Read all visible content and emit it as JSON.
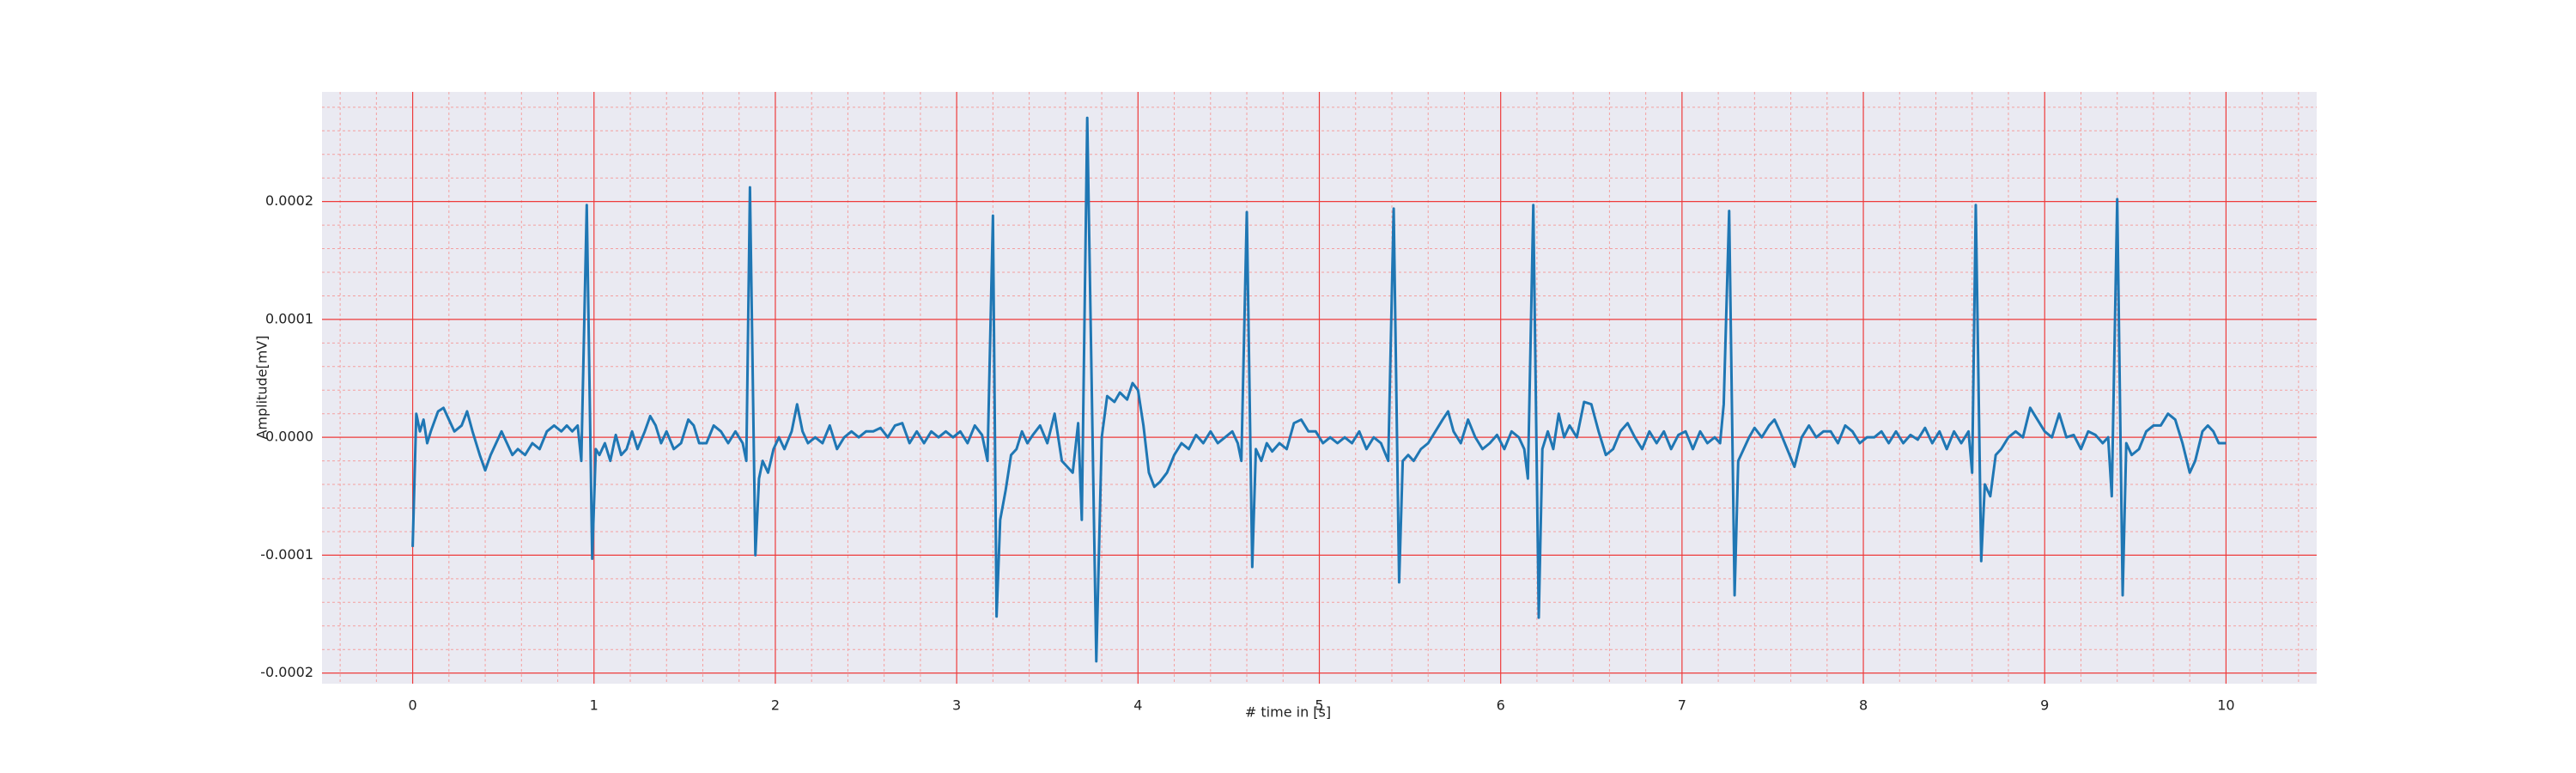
{
  "chart_data": {
    "type": "line",
    "xlabel": "# time in [s]",
    "ylabel": "Amplitude[mV]",
    "color": "#1f77b4",
    "grid": true,
    "minor_grid": true,
    "xlim": [
      -0.5,
      10.5
    ],
    "ylim": [
      -0.000209,
      0.000293
    ],
    "xticks": [
      0,
      1,
      2,
      3,
      4,
      5,
      6,
      7,
      8,
      9,
      10
    ],
    "yticks": [
      -0.0002,
      -0.0001,
      {
        "value": 0,
        "label": "0.0000"
      },
      0.0001,
      0.0002
    ],
    "xminorticks": [
      -0.4,
      -0.2,
      0.2,
      0.4,
      0.6,
      0.8,
      1.2,
      1.4,
      1.6,
      1.8,
      2.2,
      2.4,
      2.6,
      2.8,
      3.2,
      3.4,
      3.6,
      3.8,
      4.2,
      4.4,
      4.6,
      4.8,
      5.2,
      5.4,
      5.6,
      5.8,
      6.2,
      6.4,
      6.6,
      6.8,
      7.2,
      7.4,
      7.6,
      7.8,
      8.2,
      8.4,
      8.6,
      8.8,
      9.2,
      9.4,
      9.6,
      9.8,
      10.2,
      10.4
    ],
    "yminorticks": [
      -0.00018,
      -0.00016,
      -0.00014,
      -0.00012,
      -8e-05,
      -6e-05,
      -4e-05,
      -2e-05,
      2e-05,
      4e-05,
      6e-05,
      8e-05,
      0.00012,
      0.00014,
      0.00016,
      0.00018,
      0.00022,
      0.00024,
      0.00026,
      0.00028
    ],
    "x": [
      0.0,
      0.02,
      0.04,
      0.06,
      0.08,
      0.1,
      0.14,
      0.17,
      0.2,
      0.23,
      0.27,
      0.3,
      0.33,
      0.37,
      0.4,
      0.43,
      0.46,
      0.49,
      0.52,
      0.55,
      0.58,
      0.62,
      0.66,
      0.7,
      0.74,
      0.78,
      0.82,
      0.85,
      0.88,
      0.91,
      0.93,
      0.96,
      0.99,
      1.01,
      1.03,
      1.06,
      1.09,
      1.12,
      1.15,
      1.18,
      1.21,
      1.24,
      1.28,
      1.31,
      1.34,
      1.37,
      1.4,
      1.44,
      1.48,
      1.52,
      1.55,
      1.58,
      1.62,
      1.66,
      1.7,
      1.74,
      1.78,
      1.82,
      1.84,
      1.86,
      1.89,
      1.91,
      1.93,
      1.96,
      1.99,
      2.02,
      2.05,
      2.09,
      2.12,
      2.15,
      2.18,
      2.22,
      2.26,
      2.3,
      2.34,
      2.38,
      2.42,
      2.46,
      2.5,
      2.54,
      2.58,
      2.62,
      2.66,
      2.7,
      2.74,
      2.78,
      2.82,
      2.86,
      2.9,
      2.94,
      2.98,
      3.02,
      3.06,
      3.1,
      3.14,
      3.17,
      3.2,
      3.22,
      3.24,
      3.27,
      3.3,
      3.33,
      3.36,
      3.39,
      3.42,
      3.46,
      3.5,
      3.54,
      3.58,
      3.61,
      3.64,
      3.67,
      3.69,
      3.72,
      3.77,
      3.8,
      3.83,
      3.87,
      3.9,
      3.94,
      3.97,
      4.0,
      4.03,
      4.06,
      4.09,
      4.12,
      4.16,
      4.2,
      4.24,
      4.28,
      4.32,
      4.36,
      4.4,
      4.44,
      4.48,
      4.52,
      4.55,
      4.57,
      4.6,
      4.63,
      4.65,
      4.68,
      4.71,
      4.74,
      4.78,
      4.82,
      4.86,
      4.9,
      4.94,
      4.98,
      5.02,
      5.06,
      5.1,
      5.14,
      5.18,
      5.22,
      5.26,
      5.3,
      5.34,
      5.38,
      5.41,
      5.44,
      5.46,
      5.49,
      5.52,
      5.56,
      5.6,
      5.64,
      5.68,
      5.71,
      5.74,
      5.78,
      5.82,
      5.86,
      5.9,
      5.94,
      5.98,
      6.02,
      6.06,
      6.1,
      6.13,
      6.15,
      6.18,
      6.21,
      6.23,
      6.26,
      6.29,
      6.32,
      6.35,
      6.38,
      6.42,
      6.46,
      6.5,
      6.54,
      6.58,
      6.62,
      6.66,
      6.7,
      6.74,
      6.78,
      6.82,
      6.86,
      6.9,
      6.94,
      6.98,
      7.02,
      7.06,
      7.1,
      7.14,
      7.18,
      7.21,
      7.23,
      7.26,
      7.29,
      7.31,
      7.34,
      7.37,
      7.4,
      7.44,
      7.48,
      7.51,
      7.54,
      7.58,
      7.62,
      7.66,
      7.7,
      7.74,
      7.78,
      7.82,
      7.86,
      7.9,
      7.94,
      7.98,
      8.02,
      8.06,
      8.1,
      8.14,
      8.18,
      8.22,
      8.26,
      8.3,
      8.34,
      8.38,
      8.42,
      8.46,
      8.5,
      8.54,
      8.58,
      8.6,
      8.62,
      8.65,
      8.67,
      8.7,
      8.73,
      8.76,
      8.8,
      8.84,
      8.88,
      8.92,
      8.96,
      9.0,
      9.04,
      9.08,
      9.12,
      9.16,
      9.2,
      9.24,
      9.28,
      9.32,
      9.35,
      9.37,
      9.4,
      9.43,
      9.45,
      9.48,
      9.52,
      9.56,
      9.6,
      9.64,
      9.68,
      9.72,
      9.76,
      9.8,
      9.83,
      9.87,
      9.9,
      9.93,
      9.96,
      10.0
    ],
    "values": [
      -9.3e-05,
      2e-05,
      5e-06,
      1.5e-05,
      -5e-06,
      5e-06,
      2.2e-05,
      2.5e-05,
      1.5e-05,
      5e-06,
      1e-05,
      2.2e-05,
      5e-06,
      -1.5e-05,
      -2.8e-05,
      -1.5e-05,
      -5e-06,
      5e-06,
      -5e-06,
      -1.5e-05,
      -1e-05,
      -1.5e-05,
      -5e-06,
      -1e-05,
      5e-06,
      1e-05,
      5e-06,
      1e-05,
      5e-06,
      1e-05,
      -2e-05,
      0.000197,
      -0.000103,
      -1e-05,
      -1.5e-05,
      -5e-06,
      -2e-05,
      2e-06,
      -1.5e-05,
      -1e-05,
      5e-06,
      -1e-05,
      5e-06,
      1.8e-05,
      1e-05,
      -5e-06,
      5e-06,
      -1e-05,
      -5e-06,
      1.5e-05,
      1e-05,
      -5e-06,
      -5e-06,
      1e-05,
      5e-06,
      -5e-06,
      5e-06,
      -5e-06,
      -2e-05,
      0.000212,
      -0.0001,
      -3.5e-05,
      -2e-05,
      -3e-05,
      -1e-05,
      0,
      -1e-05,
      5e-06,
      2.8e-05,
      5e-06,
      -5e-06,
      0,
      -5e-06,
      1e-05,
      -1e-05,
      0,
      5e-06,
      0,
      5e-06,
      5e-06,
      8e-06,
      0,
      1e-05,
      1.2e-05,
      -5e-06,
      5e-06,
      -5e-06,
      5e-06,
      0,
      5e-06,
      0,
      5e-06,
      -5e-06,
      1e-05,
      2e-06,
      -2e-05,
      0.000188,
      -0.000152,
      -7e-05,
      -4.5e-05,
      -1.5e-05,
      -1e-05,
      5e-06,
      -5e-06,
      2e-06,
      1e-05,
      -5e-06,
      2e-05,
      -2e-05,
      -2.5e-05,
      -3e-05,
      1.2e-05,
      -7e-05,
      0.000271,
      -0.00019,
      0,
      3.5e-05,
      3e-05,
      3.8e-05,
      3.2e-05,
      4.6e-05,
      4e-05,
      1e-05,
      -3e-05,
      -4.2e-05,
      -3.8e-05,
      -3e-05,
      -1.5e-05,
      -5e-06,
      -1e-05,
      2e-06,
      -5e-06,
      5e-06,
      -5e-06,
      0,
      5e-06,
      -5e-06,
      -2e-05,
      0.000191,
      -0.00011,
      -1e-05,
      -2e-05,
      -5e-06,
      -1.2e-05,
      -5e-06,
      -1e-05,
      1.2e-05,
      1.5e-05,
      5e-06,
      5e-06,
      -5e-06,
      0,
      -5e-06,
      0,
      -5e-06,
      5e-06,
      -1e-05,
      0,
      -5e-06,
      -2e-05,
      0.000194,
      -0.000123,
      -2e-05,
      -1.5e-05,
      -2e-05,
      -1e-05,
      -5e-06,
      5e-06,
      1.5e-05,
      2.2e-05,
      5e-06,
      -5e-06,
      1.5e-05,
      0,
      -1e-05,
      -5e-06,
      2e-06,
      -1e-05,
      5e-06,
      0,
      -1e-05,
      -3.5e-05,
      0.000197,
      -0.000153,
      -1e-05,
      5e-06,
      -1e-05,
      2e-05,
      0,
      1e-05,
      0,
      3e-05,
      2.8e-05,
      5e-06,
      -1.5e-05,
      -1e-05,
      5e-06,
      1.2e-05,
      0,
      -1e-05,
      5e-06,
      -5e-06,
      5e-06,
      -1e-05,
      2e-06,
      5e-06,
      -1e-05,
      5e-06,
      -5e-06,
      0,
      -5e-06,
      2.8e-05,
      0.000192,
      -0.000134,
      -2e-05,
      -1e-05,
      0,
      8e-06,
      0,
      1e-05,
      1.5e-05,
      5e-06,
      -1e-05,
      -2.5e-05,
      0,
      1e-05,
      0,
      5e-06,
      5e-06,
      -5e-06,
      1e-05,
      5e-06,
      -5e-06,
      0,
      0,
      5e-06,
      -5e-06,
      5e-06,
      -5e-06,
      2e-06,
      -2e-06,
      8e-06,
      -5e-06,
      5e-06,
      -1e-05,
      5e-06,
      -5e-06,
      5e-06,
      -3e-05,
      0.000197,
      -0.000105,
      -4e-05,
      -5e-05,
      -1.5e-05,
      -1e-05,
      0,
      5e-06,
      0,
      2.5e-05,
      1.5e-05,
      5e-06,
      0,
      2e-05,
      0,
      2e-06,
      -1e-05,
      5e-06,
      2e-06,
      -5e-06,
      0,
      -5e-05,
      0.000202,
      -0.000134,
      -5e-06,
      -1.5e-05,
      -1e-05,
      5e-06,
      1e-05,
      1e-05,
      2e-05,
      1.5e-05,
      -5e-06,
      -3e-05,
      -2e-05,
      5e-06,
      1e-05,
      5e-06,
      -5e-06,
      -5e-06
    ]
  }
}
